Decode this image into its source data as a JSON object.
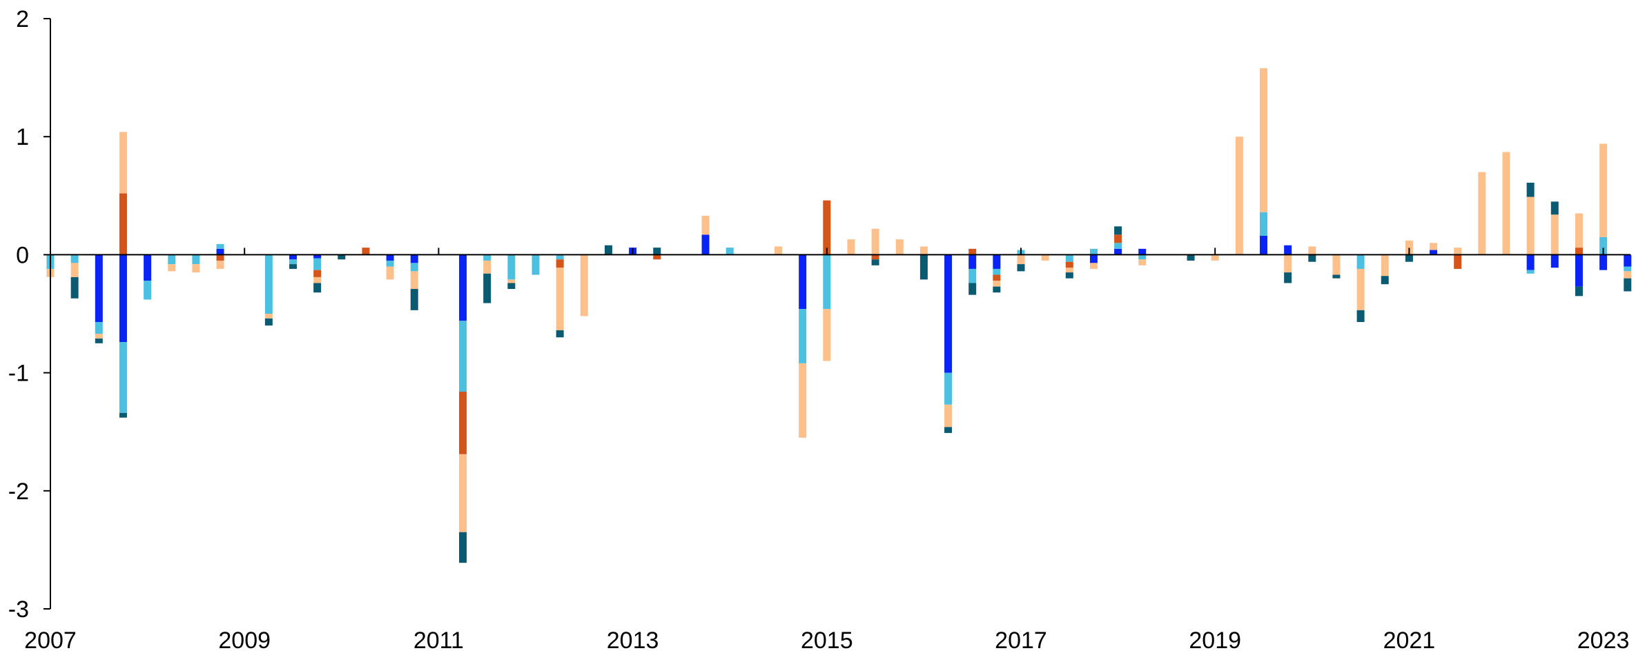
{
  "chart_data": {
    "type": "bar",
    "stacked": true,
    "title": "",
    "xlabel": "",
    "ylabel": "",
    "ylim": [
      -3,
      2
    ],
    "y_ticks": [
      2,
      1,
      0,
      -1,
      -2,
      -3
    ],
    "y_tick_labels": [
      "2",
      "1",
      "0",
      "-1",
      "-2",
      "-3"
    ],
    "x_tick_labels": [
      "2007",
      "2009",
      "2011",
      "2013",
      "2015",
      "2017",
      "2019",
      "2021",
      "2023"
    ],
    "x_range": [
      2007.0,
      2023.5
    ],
    "grid": false,
    "legend": "none",
    "series_colors": [
      "#0a24f5",
      "#4cc0e0",
      "#d4541a",
      "#fec08a",
      "#0a5a72"
    ],
    "bars": [
      {
        "x": 2007.0,
        "segs": [
          [
            -0.12,
            "#4cc0e0"
          ],
          [
            -0.07,
            "#fec08a"
          ]
        ]
      },
      {
        "x": 2007.25,
        "segs": [
          [
            -0.07,
            "#4cc0e0"
          ],
          [
            -0.12,
            "#fec08a"
          ],
          [
            -0.18,
            "#0a5a72"
          ]
        ]
      },
      {
        "x": 2007.5,
        "segs": [
          [
            -0.57,
            "#0a24f5"
          ],
          [
            -0.1,
            "#4cc0e0"
          ],
          [
            -0.04,
            "#fec08a"
          ],
          [
            -0.04,
            "#0a5a72"
          ]
        ]
      },
      {
        "x": 2007.75,
        "segs": [
          [
            0.52,
            "#d4541a"
          ],
          [
            0.52,
            "#fec08a"
          ],
          [
            -0.74,
            "#0a24f5"
          ],
          [
            -0.6,
            "#4cc0e0"
          ],
          [
            -0.04,
            "#0a5a72"
          ]
        ]
      },
      {
        "x": 2008.0,
        "segs": [
          [
            -0.22,
            "#0a24f5"
          ],
          [
            -0.16,
            "#4cc0e0"
          ]
        ]
      },
      {
        "x": 2008.25,
        "segs": [
          [
            -0.08,
            "#4cc0e0"
          ],
          [
            -0.06,
            "#fec08a"
          ]
        ]
      },
      {
        "x": 2008.5,
        "segs": [
          [
            -0.08,
            "#4cc0e0"
          ],
          [
            -0.07,
            "#fec08a"
          ]
        ]
      },
      {
        "x": 2008.75,
        "segs": [
          [
            0.05,
            "#0a24f5"
          ],
          [
            0.04,
            "#4cc0e0"
          ],
          [
            -0.05,
            "#d4541a"
          ],
          [
            -0.07,
            "#fec08a"
          ]
        ]
      },
      {
        "x": 2009.25,
        "segs": [
          [
            -0.5,
            "#4cc0e0"
          ],
          [
            -0.04,
            "#fec08a"
          ],
          [
            -0.06,
            "#0a5a72"
          ]
        ]
      },
      {
        "x": 2009.5,
        "segs": [
          [
            -0.04,
            "#0a24f5"
          ],
          [
            -0.04,
            "#4cc0e0"
          ],
          [
            -0.04,
            "#0a5a72"
          ]
        ]
      },
      {
        "x": 2009.75,
        "segs": [
          [
            -0.03,
            "#0a24f5"
          ],
          [
            -0.1,
            "#4cc0e0"
          ],
          [
            -0.06,
            "#d4541a"
          ],
          [
            -0.05,
            "#fec08a"
          ],
          [
            -0.08,
            "#0a5a72"
          ]
        ]
      },
      {
        "x": 2010.0,
        "segs": [
          [
            -0.04,
            "#0a5a72"
          ]
        ]
      },
      {
        "x": 2010.25,
        "segs": [
          [
            0.06,
            "#d4541a"
          ]
        ]
      },
      {
        "x": 2010.5,
        "segs": [
          [
            -0.05,
            "#0a24f5"
          ],
          [
            -0.05,
            "#4cc0e0"
          ],
          [
            -0.11,
            "#fec08a"
          ]
        ]
      },
      {
        "x": 2010.75,
        "segs": [
          [
            -0.07,
            "#0a24f5"
          ],
          [
            -0.07,
            "#4cc0e0"
          ],
          [
            -0.15,
            "#fec08a"
          ],
          [
            -0.18,
            "#0a5a72"
          ]
        ]
      },
      {
        "x": 2011.25,
        "segs": [
          [
            -0.56,
            "#0a24f5"
          ],
          [
            -0.6,
            "#4cc0e0"
          ],
          [
            -0.53,
            "#d4541a"
          ],
          [
            -0.66,
            "#fec08a"
          ],
          [
            -0.26,
            "#0a5a72"
          ]
        ]
      },
      {
        "x": 2011.5,
        "segs": [
          [
            -0.05,
            "#4cc0e0"
          ],
          [
            -0.11,
            "#fec08a"
          ],
          [
            -0.25,
            "#0a5a72"
          ]
        ]
      },
      {
        "x": 2011.75,
        "segs": [
          [
            -0.21,
            "#4cc0e0"
          ],
          [
            -0.03,
            "#fec08a"
          ],
          [
            -0.05,
            "#0a5a72"
          ]
        ]
      },
      {
        "x": 2012.0,
        "segs": [
          [
            -0.17,
            "#4cc0e0"
          ]
        ]
      },
      {
        "x": 2012.25,
        "segs": [
          [
            -0.04,
            "#4cc0e0"
          ],
          [
            -0.07,
            "#d4541a"
          ],
          [
            -0.53,
            "#fec08a"
          ],
          [
            -0.06,
            "#0a5a72"
          ]
        ]
      },
      {
        "x": 2012.5,
        "segs": [
          [
            -0.52,
            "#fec08a"
          ]
        ]
      },
      {
        "x": 2012.75,
        "segs": [
          [
            0.08,
            "#0a5a72"
          ]
        ]
      },
      {
        "x": 2013.0,
        "segs": [
          [
            0.06,
            "#0a24f5"
          ]
        ]
      },
      {
        "x": 2013.25,
        "segs": [
          [
            0.06,
            "#0a5a72"
          ],
          [
            -0.04,
            "#d4541a"
          ]
        ]
      },
      {
        "x": 2013.75,
        "segs": [
          [
            0.17,
            "#0a24f5"
          ],
          [
            0.16,
            "#fec08a"
          ]
        ]
      },
      {
        "x": 2014.0,
        "segs": [
          [
            0.06,
            "#4cc0e0"
          ]
        ]
      },
      {
        "x": 2014.5,
        "segs": [
          [
            0.07,
            "#fec08a"
          ]
        ]
      },
      {
        "x": 2014.75,
        "segs": [
          [
            -0.46,
            "#0a24f5"
          ],
          [
            -0.46,
            "#4cc0e0"
          ],
          [
            -0.63,
            "#fec08a"
          ]
        ]
      },
      {
        "x": 2015.0,
        "segs": [
          [
            0.46,
            "#d4541a"
          ],
          [
            -0.46,
            "#4cc0e0"
          ],
          [
            -0.44,
            "#fec08a"
          ]
        ]
      },
      {
        "x": 2015.25,
        "segs": [
          [
            0.13,
            "#fec08a"
          ]
        ]
      },
      {
        "x": 2015.5,
        "segs": [
          [
            0.22,
            "#fec08a"
          ],
          [
            -0.04,
            "#d4541a"
          ],
          [
            -0.05,
            "#0a5a72"
          ]
        ]
      },
      {
        "x": 2015.75,
        "segs": [
          [
            0.13,
            "#fec08a"
          ]
        ]
      },
      {
        "x": 2016.0,
        "segs": [
          [
            0.07,
            "#fec08a"
          ],
          [
            -0.21,
            "#0a5a72"
          ]
        ]
      },
      {
        "x": 2016.25,
        "segs": [
          [
            -1.0,
            "#0a24f5"
          ],
          [
            -0.27,
            "#4cc0e0"
          ],
          [
            -0.19,
            "#fec08a"
          ],
          [
            -0.05,
            "#0a5a72"
          ]
        ]
      },
      {
        "x": 2016.5,
        "segs": [
          [
            0.05,
            "#d4541a"
          ],
          [
            -0.12,
            "#0a24f5"
          ],
          [
            -0.12,
            "#4cc0e0"
          ],
          [
            -0.1,
            "#0a5a72"
          ]
        ]
      },
      {
        "x": 2016.75,
        "segs": [
          [
            -0.12,
            "#0a24f5"
          ],
          [
            -0.05,
            "#4cc0e0"
          ],
          [
            -0.05,
            "#d4541a"
          ],
          [
            -0.05,
            "#fec08a"
          ],
          [
            -0.05,
            "#0a5a72"
          ]
        ]
      },
      {
        "x": 2017.0,
        "segs": [
          [
            0.04,
            "#4cc0e0"
          ],
          [
            -0.08,
            "#fec08a"
          ],
          [
            -0.06,
            "#0a5a72"
          ]
        ]
      },
      {
        "x": 2017.25,
        "segs": [
          [
            -0.05,
            "#fec08a"
          ]
        ]
      },
      {
        "x": 2017.5,
        "segs": [
          [
            -0.06,
            "#4cc0e0"
          ],
          [
            -0.05,
            "#d4541a"
          ],
          [
            -0.04,
            "#fec08a"
          ],
          [
            -0.05,
            "#0a5a72"
          ]
        ]
      },
      {
        "x": 2017.75,
        "segs": [
          [
            0.05,
            "#4cc0e0"
          ],
          [
            -0.07,
            "#0a24f5"
          ],
          [
            -0.05,
            "#fec08a"
          ]
        ]
      },
      {
        "x": 2018.0,
        "segs": [
          [
            0.05,
            "#0a24f5"
          ],
          [
            0.05,
            "#4cc0e0"
          ],
          [
            0.07,
            "#d4541a"
          ],
          [
            0.07,
            "#0a5a72"
          ]
        ]
      },
      {
        "x": 2018.25,
        "segs": [
          [
            0.05,
            "#0a24f5"
          ],
          [
            -0.04,
            "#4cc0e0"
          ],
          [
            -0.05,
            "#fec08a"
          ]
        ]
      },
      {
        "x": 2018.75,
        "segs": [
          [
            -0.05,
            "#0a5a72"
          ]
        ]
      },
      {
        "x": 2019.0,
        "segs": [
          [
            -0.05,
            "#fec08a"
          ]
        ]
      },
      {
        "x": 2019.25,
        "segs": [
          [
            1.0,
            "#fec08a"
          ]
        ]
      },
      {
        "x": 2019.5,
        "segs": [
          [
            0.16,
            "#0a24f5"
          ],
          [
            0.2,
            "#4cc0e0"
          ],
          [
            1.22,
            "#fec08a"
          ]
        ]
      },
      {
        "x": 2019.75,
        "segs": [
          [
            0.08,
            "#0a24f5"
          ],
          [
            -0.15,
            "#fec08a"
          ],
          [
            -0.09,
            "#0a5a72"
          ]
        ]
      },
      {
        "x": 2020.0,
        "segs": [
          [
            0.07,
            "#fec08a"
          ],
          [
            -0.06,
            "#0a5a72"
          ]
        ]
      },
      {
        "x": 2020.25,
        "segs": [
          [
            -0.17,
            "#fec08a"
          ],
          [
            -0.03,
            "#0a5a72"
          ]
        ]
      },
      {
        "x": 2020.5,
        "segs": [
          [
            -0.12,
            "#4cc0e0"
          ],
          [
            -0.35,
            "#fec08a"
          ],
          [
            -0.1,
            "#0a5a72"
          ]
        ]
      },
      {
        "x": 2020.75,
        "segs": [
          [
            -0.18,
            "#fec08a"
          ],
          [
            -0.07,
            "#0a5a72"
          ]
        ]
      },
      {
        "x": 2021.0,
        "segs": [
          [
            0.12,
            "#fec08a"
          ],
          [
            -0.06,
            "#0a5a72"
          ]
        ]
      },
      {
        "x": 2021.25,
        "segs": [
          [
            0.04,
            "#0a24f5"
          ],
          [
            0.06,
            "#fec08a"
          ]
        ]
      },
      {
        "x": 2021.5,
        "segs": [
          [
            0.06,
            "#fec08a"
          ],
          [
            -0.12,
            "#d4541a"
          ]
        ]
      },
      {
        "x": 2021.75,
        "segs": [
          [
            0.7,
            "#fec08a"
          ]
        ]
      },
      {
        "x": 2022.0,
        "segs": [
          [
            0.87,
            "#fec08a"
          ]
        ]
      },
      {
        "x": 2022.25,
        "segs": [
          [
            0.49,
            "#fec08a"
          ],
          [
            0.12,
            "#0a5a72"
          ],
          [
            -0.13,
            "#0a24f5"
          ],
          [
            -0.03,
            "#4cc0e0"
          ]
        ]
      },
      {
        "x": 2022.5,
        "segs": [
          [
            0.34,
            "#fec08a"
          ],
          [
            0.11,
            "#0a5a72"
          ],
          [
            -0.11,
            "#0a24f5"
          ]
        ]
      },
      {
        "x": 2022.75,
        "segs": [
          [
            0.06,
            "#d4541a"
          ],
          [
            0.29,
            "#fec08a"
          ],
          [
            -0.27,
            "#0a24f5"
          ],
          [
            -0.08,
            "#0a5a72"
          ]
        ]
      },
      {
        "x": 2023.0,
        "segs": [
          [
            0.15,
            "#4cc0e0"
          ],
          [
            0.79,
            "#fec08a"
          ],
          [
            -0.13,
            "#0a24f5"
          ]
        ]
      },
      {
        "x": 2023.25,
        "segs": [
          [
            -0.1,
            "#0a24f5"
          ],
          [
            -0.04,
            "#4cc0e0"
          ],
          [
            -0.06,
            "#fec08a"
          ],
          [
            -0.11,
            "#0a5a72"
          ]
        ]
      }
    ]
  }
}
